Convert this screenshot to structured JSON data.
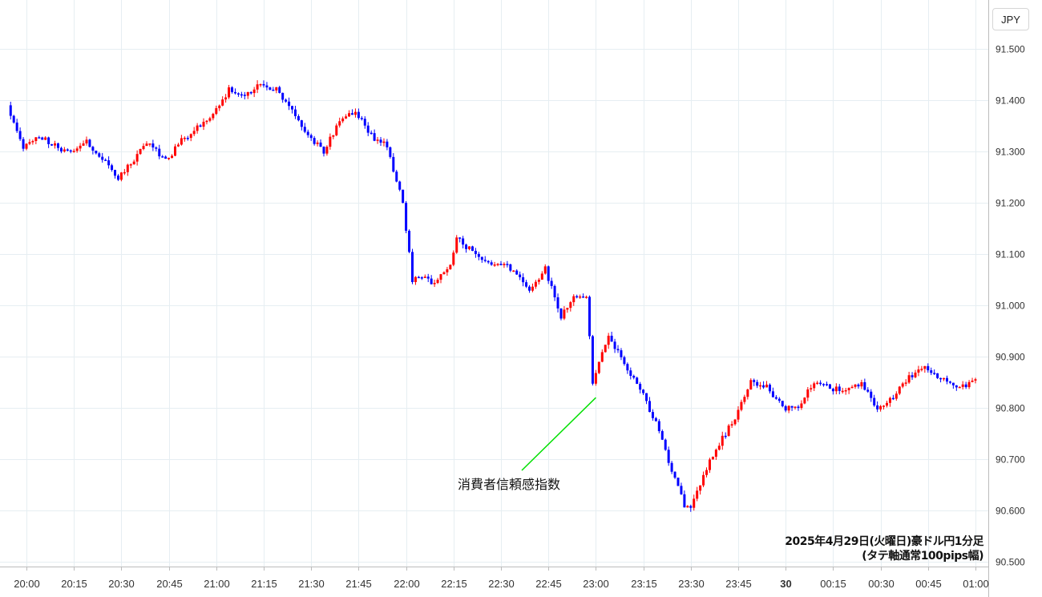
{
  "currency_label": "JPY",
  "caption": {
    "line1": "2025年4月29日(火曜日)豪ドル円1分足",
    "line2": "(タテ軸通常100pips幅)"
  },
  "annotation": "消費者信頼感指数",
  "colors": {
    "up": "#ff0000",
    "down": "#0000ff",
    "grid": "#e6eef2",
    "annotation_line": "#00e000"
  },
  "chart_data": {
    "type": "candlestick",
    "y_unit": "JPY",
    "ylim": [
      90.5,
      91.55
    ],
    "y_ticks": [
      "91.500",
      "91.400",
      "91.300",
      "91.200",
      "91.100",
      "91.000",
      "90.900",
      "90.800",
      "90.700",
      "90.600",
      "90.500"
    ],
    "x_ticks": [
      "20:00",
      "20:15",
      "20:30",
      "20:45",
      "21:00",
      "21:15",
      "21:30",
      "21:45",
      "22:00",
      "22:15",
      "22:30",
      "22:45",
      "23:00",
      "23:15",
      "23:30",
      "23:45",
      "30",
      "00:15",
      "00:30",
      "00:45",
      "01:00"
    ],
    "bold_x_tick": "30",
    "grid": true,
    "price_anchors": [
      [
        "19:55",
        91.39
      ],
      [
        "20:00",
        91.31
      ],
      [
        "20:05",
        91.33
      ],
      [
        "20:10",
        91.31
      ],
      [
        "20:15",
        91.3
      ],
      [
        "20:20",
        91.32
      ],
      [
        "20:30",
        91.25
      ],
      [
        "20:40",
        91.32
      ],
      [
        "20:45",
        91.28
      ],
      [
        "20:50",
        91.32
      ],
      [
        "21:00",
        91.37
      ],
      [
        "21:05",
        91.42
      ],
      [
        "21:10",
        91.41
      ],
      [
        "21:15",
        91.43
      ],
      [
        "21:20",
        91.42
      ],
      [
        "21:25",
        91.38
      ],
      [
        "21:30",
        91.33
      ],
      [
        "21:35",
        91.3
      ],
      [
        "21:40",
        91.36
      ],
      [
        "21:45",
        91.38
      ],
      [
        "21:50",
        91.33
      ],
      [
        "21:55",
        91.31
      ],
      [
        "22:00",
        91.2
      ],
      [
        "22:03",
        91.05
      ],
      [
        "22:07",
        91.06
      ],
      [
        "22:10",
        91.04
      ],
      [
        "22:15",
        91.08
      ],
      [
        "22:17",
        91.13
      ],
      [
        "22:25",
        91.09
      ],
      [
        "22:30",
        91.08
      ],
      [
        "22:35",
        91.07
      ],
      [
        "22:40",
        91.03
      ],
      [
        "22:45",
        91.07
      ],
      [
        "22:50",
        90.98
      ],
      [
        "22:55",
        91.02
      ],
      [
        "22:58",
        91.02
      ],
      [
        "23:00",
        90.85
      ],
      [
        "23:05",
        90.94
      ],
      [
        "23:08",
        90.91
      ],
      [
        "23:12",
        90.86
      ],
      [
        "23:15",
        90.84
      ],
      [
        "23:20",
        90.77
      ],
      [
        "23:25",
        90.68
      ],
      [
        "23:29",
        90.61
      ],
      [
        "23:31",
        90.6
      ],
      [
        "23:35",
        90.67
      ],
      [
        "23:40",
        90.73
      ],
      [
        "23:45",
        90.78
      ],
      [
        "23:50",
        90.85
      ],
      [
        "23:55",
        90.84
      ],
      [
        "00:00",
        90.8
      ],
      [
        "00:05",
        90.8
      ],
      [
        "00:10",
        90.85
      ],
      [
        "00:15",
        90.84
      ],
      [
        "00:20",
        90.83
      ],
      [
        "00:25",
        90.85
      ],
      [
        "00:30",
        90.8
      ],
      [
        "00:35",
        90.82
      ],
      [
        "00:40",
        90.86
      ],
      [
        "00:45",
        90.88
      ],
      [
        "00:50",
        90.86
      ],
      [
        "00:55",
        90.84
      ],
      [
        "01:00",
        90.85
      ]
    ],
    "annotated_time": "23:00",
    "title": "2025年4月29日(火曜日)豪ドル円1分足"
  }
}
